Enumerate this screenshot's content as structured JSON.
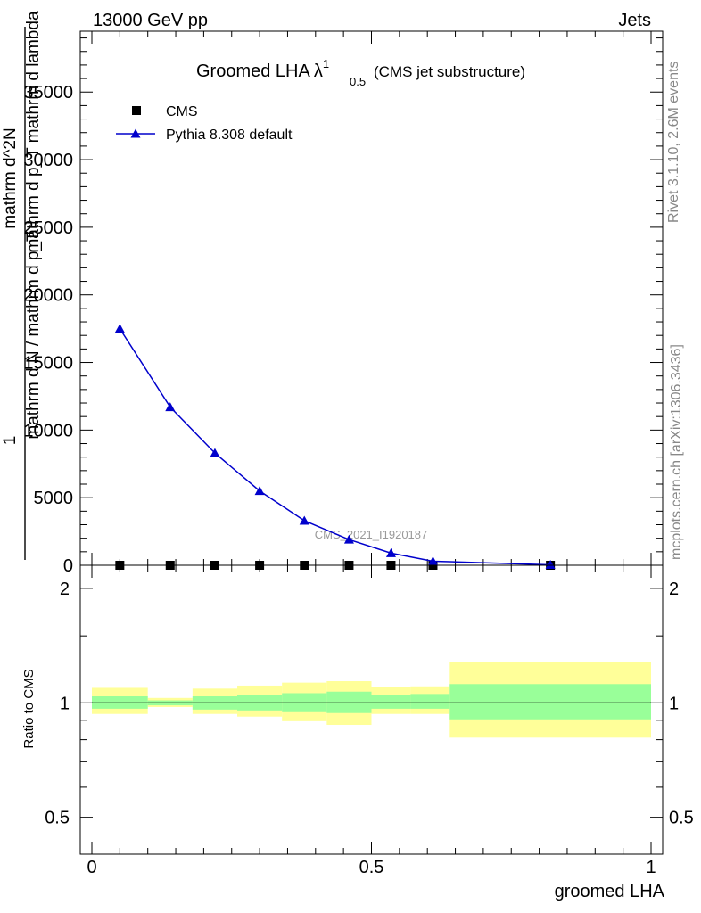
{
  "header": {
    "left": "13000 GeV pp",
    "right": "Jets"
  },
  "side": {
    "top": "Rivet 3.1.10,  2.6M events",
    "bottom": "mcplots.cern.ch [arXiv:1306.3436]"
  },
  "chart_data": [
    {
      "type": "line",
      "title": "Groomed LHA",
      "title_lambda": "λ",
      "title_sup": "1",
      "title_sub": "0.5",
      "subtitle": "(CMS jet substructure)",
      "watermark": "CMS_2021_I1920187",
      "ylabel_parts": [
        "1",
        "mathrm d N / mathrm d p_T",
        "mathrm d^2N",
        "mathrm d p_T mathrm d lambda"
      ],
      "xlim": [
        0,
        1
      ],
      "ylim": [
        0,
        39500
      ],
      "yticks": [
        0,
        5000,
        10000,
        15000,
        20000,
        25000,
        30000,
        35000
      ],
      "ytick_labels": [
        "0",
        "5000",
        "10000",
        "15000",
        "20000",
        "25000",
        "30000",
        "35000"
      ],
      "legend": [
        "CMS",
        "Pythia 8.308 default"
      ],
      "legend_position": "top-left",
      "series": [
        {
          "name": "CMS",
          "marker": "square",
          "color": "#000000",
          "x": [
            0.05,
            0.14,
            0.22,
            0.3,
            0.38,
            0.46,
            0.535,
            0.61,
            0.82
          ],
          "y": [
            0,
            0,
            0,
            0,
            0,
            0,
            0,
            0,
            0
          ]
        },
        {
          "name": "Pythia 8.308 default",
          "marker": "triangle",
          "color": "#0000cc",
          "x": [
            0.05,
            0.14,
            0.22,
            0.3,
            0.38,
            0.46,
            0.535,
            0.61,
            0.82
          ],
          "y": [
            17500,
            11700,
            8300,
            5500,
            3300,
            1900,
            900,
            300,
            30
          ]
        }
      ]
    },
    {
      "type": "area",
      "ylabel": "Ratio to CMS",
      "xlabel": "groomed LHA",
      "xlim": [
        0,
        1
      ],
      "ylim": [
        0.4,
        2.3
      ],
      "ylog": true,
      "yticks": [
        0.5,
        1,
        2
      ],
      "ytick_labels": [
        "0.5",
        "1",
        "2"
      ],
      "xticks": [
        0,
        0.5,
        1
      ],
      "xtick_labels": [
        "0",
        "0.5",
        "1"
      ],
      "reference_line": 1,
      "bins": [
        {
          "x0": 0.0,
          "x1": 0.1,
          "stat": [
            0.965,
            1.04
          ],
          "total": [
            0.935,
            1.095
          ]
        },
        {
          "x0": 0.1,
          "x1": 0.18,
          "stat": [
            0.985,
            1.015
          ],
          "total": [
            0.975,
            1.03
          ]
        },
        {
          "x0": 0.18,
          "x1": 0.26,
          "stat": [
            0.96,
            1.04
          ],
          "total": [
            0.935,
            1.09
          ]
        },
        {
          "x0": 0.26,
          "x1": 0.34,
          "stat": [
            0.955,
            1.05
          ],
          "total": [
            0.92,
            1.11
          ]
        },
        {
          "x0": 0.34,
          "x1": 0.42,
          "stat": [
            0.945,
            1.06
          ],
          "total": [
            0.895,
            1.13
          ]
        },
        {
          "x0": 0.42,
          "x1": 0.5,
          "stat": [
            0.94,
            1.07
          ],
          "total": [
            0.875,
            1.14
          ]
        },
        {
          "x0": 0.5,
          "x1": 0.57,
          "stat": [
            0.965,
            1.05
          ],
          "total": [
            0.935,
            1.1
          ]
        },
        {
          "x0": 0.57,
          "x1": 0.64,
          "stat": [
            0.965,
            1.055
          ],
          "total": [
            0.935,
            1.105
          ]
        },
        {
          "x0": 0.64,
          "x1": 1.0,
          "stat": [
            0.905,
            1.12
          ],
          "total": [
            0.81,
            1.28
          ]
        }
      ],
      "colors": {
        "stat": "#99ff99",
        "total": "#ffff99"
      }
    }
  ]
}
